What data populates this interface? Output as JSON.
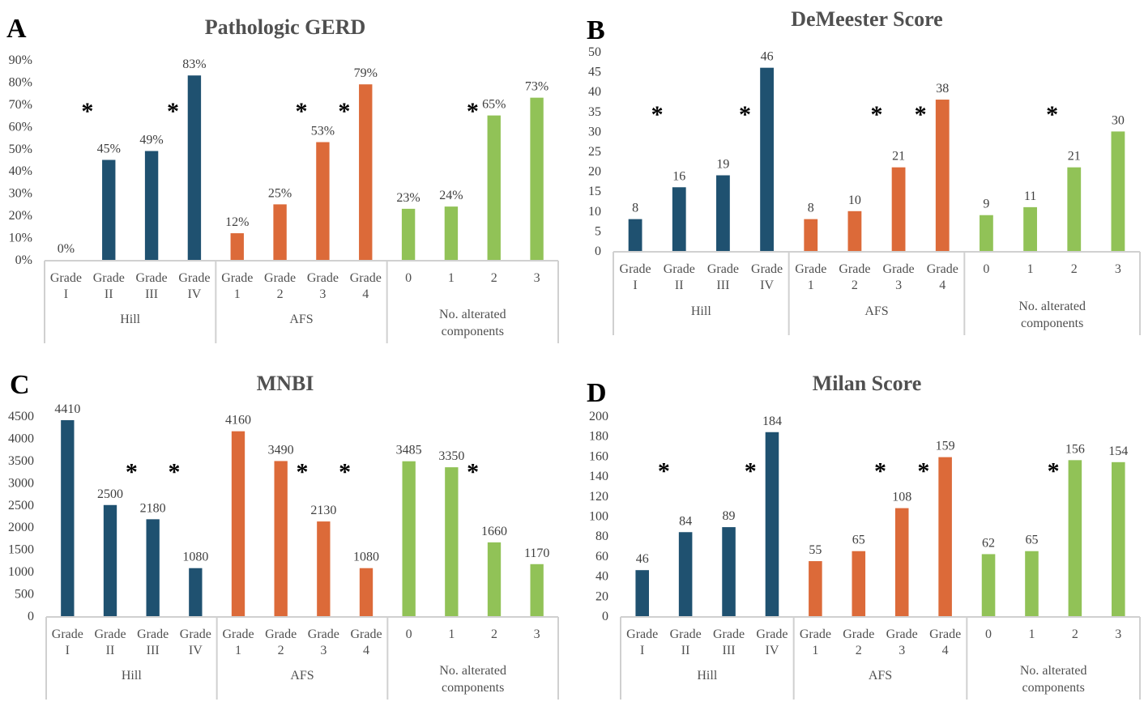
{
  "colors": {
    "hill": "#1f5170",
    "afs": "#dc6a39",
    "components": "#91c257"
  },
  "groups": [
    "Hill",
    "AFS",
    "No. alterated components"
  ],
  "chart_data": [
    {
      "panel": "A",
      "type": "bar",
      "title": "Pathologic GERD",
      "xlabel": "",
      "ylabel": "",
      "ylim": [
        0,
        90
      ],
      "yticks": [
        "0%",
        "10%",
        "20%",
        "30%",
        "40%",
        "50%",
        "60%",
        "70%",
        "80%",
        "90%"
      ],
      "categories": [
        [
          "Grade",
          "I"
        ],
        [
          "Grade",
          "II"
        ],
        [
          "Grade",
          "III"
        ],
        [
          "Grade",
          "IV"
        ],
        [
          "Grade",
          "1"
        ],
        [
          "Grade",
          "2"
        ],
        [
          "Grade",
          "3"
        ],
        [
          "Grade",
          "4"
        ],
        [
          "0"
        ],
        [
          "1"
        ],
        [
          "2"
        ],
        [
          "3"
        ]
      ],
      "category_groups": [
        "Hill",
        "Hill",
        "Hill",
        "Hill",
        "AFS",
        "AFS",
        "AFS",
        "AFS",
        "No. alterated components",
        "No. alterated components",
        "No. alterated components",
        "No. alterated components"
      ],
      "values": [
        0,
        45,
        49,
        83,
        12,
        25,
        53,
        79,
        23,
        24,
        65,
        73
      ],
      "data_labels": [
        "0%",
        "45%",
        "49%",
        "83%",
        "12%",
        "25%",
        "53%",
        "79%",
        "23%",
        "24%",
        "65%",
        "73%"
      ],
      "significance_markers": [
        {
          "between": [
            0,
            1
          ],
          "y": 70,
          "text": "*"
        },
        {
          "between": [
            2,
            3
          ],
          "y": 70,
          "text": "*"
        },
        {
          "between": [
            5,
            6
          ],
          "y": 70,
          "text": "*"
        },
        {
          "between": [
            6,
            7
          ],
          "y": 70,
          "text": "*"
        },
        {
          "between": [
            9,
            10
          ],
          "y": 70,
          "text": "*"
        }
      ],
      "grid": false,
      "legend": "none"
    },
    {
      "panel": "B",
      "type": "bar",
      "title": "DeMeester Score",
      "xlabel": "",
      "ylabel": "",
      "ylim": [
        0,
        50
      ],
      "yticks": [
        "0",
        "5",
        "10",
        "15",
        "20",
        "25",
        "30",
        "35",
        "40",
        "45",
        "50"
      ],
      "categories": [
        [
          "Grade",
          "I"
        ],
        [
          "Grade",
          "II"
        ],
        [
          "Grade",
          "III"
        ],
        [
          "Grade",
          "IV"
        ],
        [
          "Grade",
          "1"
        ],
        [
          "Grade",
          "2"
        ],
        [
          "Grade",
          "3"
        ],
        [
          "Grade",
          "4"
        ],
        [
          "0"
        ],
        [
          "1"
        ],
        [
          "2"
        ],
        [
          "3"
        ]
      ],
      "category_groups": [
        "Hill",
        "Hill",
        "Hill",
        "Hill",
        "AFS",
        "AFS",
        "AFS",
        "AFS",
        "No. alterated components",
        "No. alterated components",
        "No. alterated components",
        "No. alterated components"
      ],
      "values": [
        8,
        16,
        19,
        46,
        8,
        10,
        21,
        38,
        9,
        11,
        21,
        30
      ],
      "data_labels": [
        "8",
        "16",
        "19",
        "46",
        "8",
        "10",
        "21",
        "38",
        "9",
        "11",
        "21",
        "30"
      ],
      "significance_markers": [
        {
          "between": [
            0,
            1
          ],
          "y": 36,
          "text": "*"
        },
        {
          "between": [
            2,
            3
          ],
          "y": 36,
          "text": "*"
        },
        {
          "between": [
            5,
            6
          ],
          "y": 36,
          "text": "*"
        },
        {
          "between": [
            6,
            7
          ],
          "y": 36,
          "text": "*"
        },
        {
          "between": [
            9,
            10
          ],
          "y": 36,
          "text": "*"
        }
      ],
      "grid": false,
      "legend": "none"
    },
    {
      "panel": "C",
      "type": "bar",
      "title": "MNBI",
      "xlabel": "",
      "ylabel": "",
      "ylim": [
        0,
        4500
      ],
      "yticks": [
        "0",
        "500",
        "1000",
        "1500",
        "2000",
        "2500",
        "3000",
        "3500",
        "4000",
        "4500"
      ],
      "categories": [
        [
          "Grade",
          "I"
        ],
        [
          "Grade",
          "II"
        ],
        [
          "Grade",
          "III"
        ],
        [
          "Grade",
          "IV"
        ],
        [
          "Grade",
          "1"
        ],
        [
          "Grade",
          "2"
        ],
        [
          "Grade",
          "3"
        ],
        [
          "Grade",
          "4"
        ],
        [
          "0"
        ],
        [
          "1"
        ],
        [
          "2"
        ],
        [
          "3"
        ]
      ],
      "category_groups": [
        "Hill",
        "Hill",
        "Hill",
        "Hill",
        "AFS",
        "AFS",
        "AFS",
        "AFS",
        "No. alterated components",
        "No. alterated components",
        "No. alterated components",
        "No. alterated components"
      ],
      "values": [
        4410,
        2500,
        2180,
        1080,
        4160,
        3490,
        2130,
        1080,
        3485,
        3350,
        1660,
        1170
      ],
      "data_labels": [
        "4410",
        "2500",
        "2180",
        "1080",
        "4160",
        "3490",
        "2130",
        "1080",
        "3485",
        "3350",
        "1660",
        "1170"
      ],
      "significance_markers": [
        {
          "between": [
            1,
            2
          ],
          "y": 3400,
          "text": "*"
        },
        {
          "between": [
            2,
            3
          ],
          "y": 3400,
          "text": "*"
        },
        {
          "between": [
            5,
            6
          ],
          "y": 3400,
          "text": "*"
        },
        {
          "between": [
            6,
            7
          ],
          "y": 3400,
          "text": "*"
        },
        {
          "between": [
            9,
            10
          ],
          "y": 3400,
          "text": "*"
        }
      ],
      "grid": false,
      "legend": "none"
    },
    {
      "panel": "D",
      "type": "bar",
      "title": "Milan Score",
      "xlabel": "",
      "ylabel": "",
      "ylim": [
        0,
        200
      ],
      "yticks": [
        "0",
        "20",
        "40",
        "60",
        "80",
        "100",
        "120",
        "140",
        "160",
        "180",
        "200"
      ],
      "categories": [
        [
          "Grade",
          "I"
        ],
        [
          "Grade",
          "II"
        ],
        [
          "Grade",
          "III"
        ],
        [
          "Grade",
          "IV"
        ],
        [
          "Grade",
          "1"
        ],
        [
          "Grade",
          "2"
        ],
        [
          "Grade",
          "3"
        ],
        [
          "Grade",
          "4"
        ],
        [
          "0"
        ],
        [
          "1"
        ],
        [
          "2"
        ],
        [
          "3"
        ]
      ],
      "category_groups": [
        "Hill",
        "Hill",
        "Hill",
        "Hill",
        "AFS",
        "AFS",
        "AFS",
        "AFS",
        "No. alterated components",
        "No. alterated components",
        "No. alterated components",
        "No. alterated components"
      ],
      "values": [
        46,
        84,
        89,
        184,
        55,
        65,
        108,
        159,
        62,
        65,
        156,
        154
      ],
      "data_labels": [
        "46",
        "84",
        "89",
        "184",
        "55",
        "65",
        "108",
        "159",
        "62",
        "65",
        "156",
        "154"
      ],
      "significance_markers": [
        {
          "between": [
            0,
            1
          ],
          "y": 152,
          "text": "*"
        },
        {
          "between": [
            2,
            3
          ],
          "y": 152,
          "text": "*"
        },
        {
          "between": [
            5,
            6
          ],
          "y": 152,
          "text": "*"
        },
        {
          "between": [
            6,
            7
          ],
          "y": 152,
          "text": "*"
        },
        {
          "between": [
            9,
            10
          ],
          "y": 152,
          "text": "*"
        }
      ],
      "grid": false,
      "legend": "none"
    }
  ]
}
